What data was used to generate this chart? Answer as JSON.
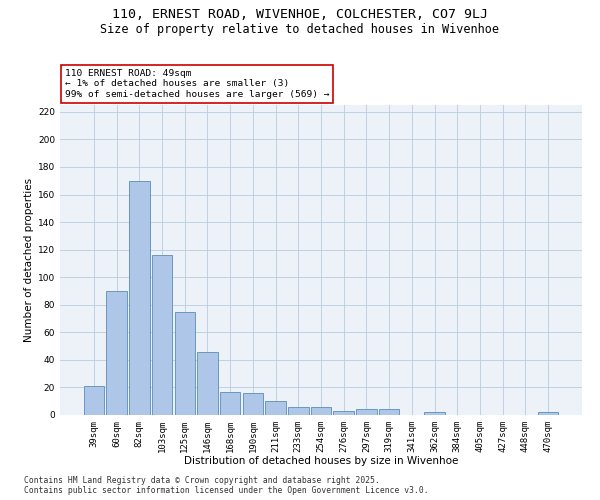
{
  "title_line1": "110, ERNEST ROAD, WIVENHOE, COLCHESTER, CO7 9LJ",
  "title_line2": "Size of property relative to detached houses in Wivenhoe",
  "xlabel": "Distribution of detached houses by size in Wivenhoe",
  "ylabel": "Number of detached properties",
  "categories": [
    "39sqm",
    "60sqm",
    "82sqm",
    "103sqm",
    "125sqm",
    "146sqm",
    "168sqm",
    "190sqm",
    "211sqm",
    "233sqm",
    "254sqm",
    "276sqm",
    "297sqm",
    "319sqm",
    "341sqm",
    "362sqm",
    "384sqm",
    "405sqm",
    "427sqm",
    "448sqm",
    "470sqm"
  ],
  "values": [
    21,
    90,
    170,
    116,
    75,
    46,
    17,
    16,
    10,
    6,
    6,
    3,
    4,
    4,
    0,
    2,
    0,
    0,
    0,
    0,
    2
  ],
  "bar_color": "#aec6e8",
  "bar_edge_color": "#5b8db8",
  "annotation_box_text": "110 ERNEST ROAD: 49sqm\n← 1% of detached houses are smaller (3)\n99% of semi-detached houses are larger (569) →",
  "annotation_box_color": "#cc0000",
  "annotation_fill_color": "#ffffff",
  "ylim": [
    0,
    225
  ],
  "yticks": [
    0,
    20,
    40,
    60,
    80,
    100,
    120,
    140,
    160,
    180,
    200,
    220
  ],
  "grid_color": "#b8ccde",
  "background_color": "#edf2f9",
  "footer_line1": "Contains HM Land Registry data © Crown copyright and database right 2025.",
  "footer_line2": "Contains public sector information licensed under the Open Government Licence v3.0.",
  "title_fontsize": 9.5,
  "subtitle_fontsize": 8.5,
  "axis_label_fontsize": 7.5,
  "tick_fontsize": 6.5,
  "annotation_fontsize": 6.8,
  "footer_fontsize": 5.8
}
